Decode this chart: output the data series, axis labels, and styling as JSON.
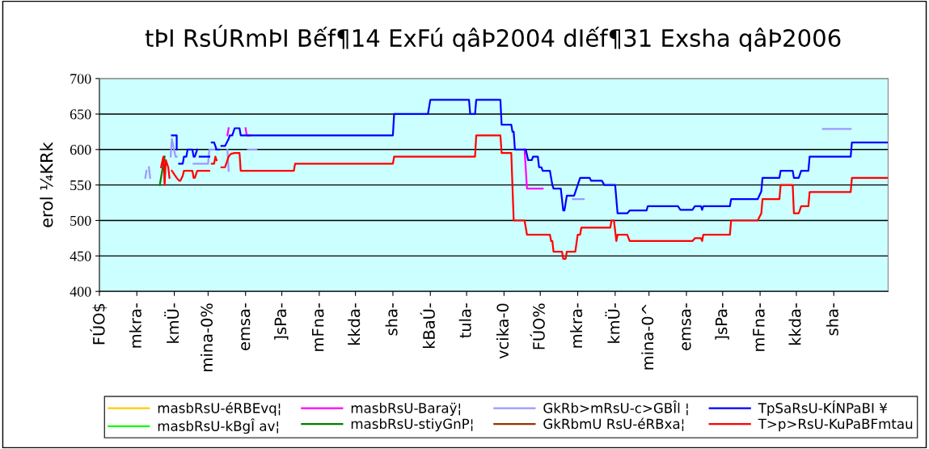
{
  "chart_data": {
    "type": "line",
    "title": "tÞI RsÚRmÞI Bếf¶14 ExFú qâÞ2004 dIếf¶31 Exsha qâÞ2006",
    "ylabel": "erol ¼KRk",
    "xlim": [
      "2004-12-01",
      "2006-09-15"
    ],
    "xticks": [
      {
        "value": "2004-12-01",
        "label": "FÚO$"
      },
      {
        "value": "2005-01-01",
        "label": "mkra-"
      },
      {
        "value": "2005-02-01",
        "label": "kmÜ-"
      },
      {
        "value": "2005-03-01",
        "label": "mina-0%"
      },
      {
        "value": "2005-04-01",
        "label": "emsa-"
      },
      {
        "value": "2005-05-01",
        "label": "]sPa-"
      },
      {
        "value": "2005-06-01",
        "label": "mFna-"
      },
      {
        "value": "2005-07-01",
        "label": "kkda-"
      },
      {
        "value": "2005-08-01",
        "label": "sha-"
      },
      {
        "value": "2005-09-01",
        "label": "kBaÚ-"
      },
      {
        "value": "2005-10-01",
        "label": "tula-"
      },
      {
        "value": "2005-11-01",
        "label": "vcika-0"
      },
      {
        "value": "2005-12-01",
        "label": "FÚO%"
      },
      {
        "value": "2006-01-01",
        "label": "mkra-"
      },
      {
        "value": "2006-02-01",
        "label": "kmÜ-"
      },
      {
        "value": "2006-03-01",
        "label": "mina-0^"
      },
      {
        "value": "2006-04-01",
        "label": "emsa-"
      },
      {
        "value": "2006-05-01",
        "label": "]sPa-"
      },
      {
        "value": "2006-06-01",
        "label": "mFna-"
      },
      {
        "value": "2006-07-01",
        "label": "kkda-"
      },
      {
        "value": "2006-08-01",
        "label": "sha-"
      }
    ],
    "ylim": [
      400,
      700
    ],
    "yticks": [
      400,
      450,
      500,
      550,
      600,
      650,
      700
    ],
    "grid": "y",
    "legend": "bottom",
    "series": [
      {
        "name": "masbRsU-éRBEvq¦",
        "color": "#ffcc00"
      },
      {
        "name": "masbRsU-kBgÎ av¦",
        "color": "#00ff00"
      },
      {
        "name": "masbRsU-Baraÿ¦",
        "color": "#ff00ff",
        "x": [
          "2005-03-17",
          "2005-03-18",
          "2005-03-25",
          "2005-04-01",
          "2005-04-02",
          "2005-04-05",
          "2005-11-16",
          "2005-11-18",
          "2005-11-20",
          "2005-12-03"
        ],
        "values": [
          620,
          630,
          null,
          630,
          620,
          620,
          null,
          600,
          545,
          545
        ]
      },
      {
        "name": "masbRsU-stiyGnP¦",
        "color": "#008000",
        "x": [
          "2005-01-20",
          "2005-01-24"
        ],
        "values": [
          550,
          590
        ]
      },
      {
        "name": "GkRb>mRsU-c>GBÎl ¦",
        "color": "#9999ff",
        "x": [
          "2005-01-08",
          "2005-01-09",
          "2005-01-10",
          "2005-01-11",
          "2005-01-12",
          "2005-01-19",
          "2005-01-29",
          "2005-01-30",
          "2005-02-02",
          "2005-02-03",
          "2005-02-10",
          "2005-02-17",
          "2005-03-01",
          "2005-03-02",
          "2005-03-06",
          "2005-03-13",
          "2005-03-17",
          "2005-03-18",
          "2005-03-25",
          "2005-04-03",
          "2005-04-10",
          "2005-08-01",
          "2005-12-28",
          "2006-01-06",
          "2006-04-01",
          "2006-07-23",
          "2006-08-15"
        ],
        "values": [
          560,
          570,
          null,
          575,
          560,
          null,
          590,
          615,
          590,
          590,
          null,
          580,
          580,
          600,
          600,
          null,
          600,
          570,
          null,
          600,
          600,
          null,
          530,
          530,
          null,
          629,
          629
        ]
      },
      {
        "name": "GkRbmU RsU-éRBxa¦",
        "color": "#993300"
      },
      {
        "name": "TpSaRsU-KÍNPaBI ¥",
        "color": "#0000ff",
        "x": [
          "2005-01-30",
          "2005-02-03",
          "2005-02-03",
          "2005-02-04",
          "2005-02-05",
          "2005-02-08",
          "2005-02-09",
          "2005-02-11",
          "2005-02-12",
          "2005-02-16",
          "2005-02-17",
          "2005-02-18",
          "2005-02-20",
          "2005-02-21",
          "2005-02-22",
          "2005-03-02",
          "2005-03-03",
          "2005-03-04",
          "2005-03-06",
          "2005-03-08",
          "2005-03-10",
          "2005-03-11",
          "2005-03-12",
          "2005-03-15",
          "2005-03-18",
          "2005-03-19",
          "2005-03-21",
          "2005-03-23",
          "2005-03-27",
          "2005-03-28",
          "2005-08-01",
          "2005-08-02",
          "2005-08-30",
          "2005-09-01",
          "2005-10-03",
          "2005-10-04",
          "2005-10-08",
          "2005-10-09",
          "2005-10-29",
          "2005-10-30",
          "2005-11-07",
          "2005-11-08",
          "2005-11-09",
          "2005-11-10",
          "2005-11-19",
          "2005-11-21",
          "2005-11-24",
          "2005-11-25",
          "2005-11-29",
          "2005-11-30",
          "2005-12-02",
          "2005-12-03",
          "2005-12-09",
          "2005-12-11",
          "2005-12-12",
          "2005-12-18",
          "2005-12-20",
          "2005-12-21",
          "2005-12-23",
          "2005-12-29",
          "2006-01-03",
          "2006-01-04",
          "2006-01-11",
          "2006-01-12",
          "2006-01-21",
          "2006-01-23",
          "2006-02-01",
          "2006-02-03",
          "2006-02-11",
          "2006-02-13",
          "2006-02-27",
          "2006-02-28",
          "2006-03-25",
          "2006-03-27",
          "2006-04-06",
          "2006-04-08",
          "2006-04-13",
          "2006-04-14",
          "2006-04-15",
          "2006-05-07",
          "2006-05-08",
          "2006-05-30",
          "2006-06-02",
          "2006-06-03",
          "2006-06-17",
          "2006-06-18",
          "2006-06-28",
          "2006-06-29",
          "2006-07-03",
          "2006-07-05",
          "2006-07-11",
          "2006-07-12",
          "2006-08-15",
          "2006-08-16",
          "2006-09-15"
        ],
        "values": [
          620,
          620,
          600,
          null,
          580,
          580,
          590,
          590,
          600,
          600,
          590,
          590,
          600,
          null,
          590,
          590,
          null,
          610,
          610,
          600,
          600,
          null,
          605,
          605,
          615,
          620,
          620,
          630,
          630,
          620,
          620,
          650,
          650,
          670,
          670,
          650,
          650,
          670,
          670,
          635,
          635,
          625,
          625,
          600,
          600,
          585,
          585,
          590,
          590,
          575,
          575,
          570,
          570,
          550,
          545,
          545,
          514,
          514,
          535,
          535,
          560,
          560,
          560,
          556,
          556,
          550,
          550,
          510,
          510,
          514,
          514,
          520,
          520,
          515,
          515,
          520,
          520,
          515,
          520,
          520,
          530,
          530,
          541,
          560,
          560,
          570,
          570,
          560,
          560,
          570,
          570,
          590,
          590,
          610,
          610
        ]
      },
      {
        "name": "T>p>RsU-KuPaBFmtau",
        "color": "#ff0000",
        "x": [
          "2005-01-21",
          "2005-01-23",
          "2005-01-24",
          "2005-01-25",
          "2005-01-27",
          "2005-01-28",
          "2005-01-29",
          "2005-01-30",
          "2005-02-03",
          "2005-02-05",
          "2005-02-06",
          "2005-02-08",
          "2005-02-09",
          "2005-02-12",
          "2005-02-16",
          "2005-02-17",
          "2005-02-18",
          "2005-02-20",
          "2005-03-02",
          "2005-03-03",
          "2005-03-04",
          "2005-03-06",
          "2005-03-07",
          "2005-03-08",
          "2005-03-10",
          "2005-03-12",
          "2005-03-15",
          "2005-03-18",
          "2005-03-20",
          "2005-03-23",
          "2005-03-27",
          "2005-03-28",
          "2005-05-11",
          "2005-05-12",
          "2005-08-01",
          "2005-08-02",
          "2005-10-08",
          "2005-10-09",
          "2005-10-29",
          "2005-10-30",
          "2005-11-07",
          "2005-11-09",
          "2005-11-18",
          "2005-11-20",
          "2005-12-09",
          "2005-12-10",
          "2005-12-11",
          "2005-12-12",
          "2005-12-19",
          "2005-12-20",
          "2005-12-22",
          "2005-12-23",
          "2005-12-30",
          "2006-01-01",
          "2006-01-03",
          "2006-01-04",
          "2006-01-28",
          "2006-01-29",
          "2006-01-31",
          "2006-02-02",
          "2006-02-03",
          "2006-02-11",
          "2006-02-13",
          "2006-04-06",
          "2006-04-08",
          "2006-04-13",
          "2006-04-14",
          "2006-04-15",
          "2006-05-07",
          "2006-05-08",
          "2006-05-30",
          "2006-06-02",
          "2006-06-03",
          "2006-06-17",
          "2006-06-18",
          "2006-06-28",
          "2006-06-29",
          "2006-07-03",
          "2006-07-05",
          "2006-07-11",
          "2006-07-12",
          "2006-08-15",
          "2006-08-16",
          "2006-09-15"
        ],
        "values": [
          575,
          590,
          550,
          585,
          575,
          560,
          null,
          570,
          560,
          556,
          556,
          563,
          570,
          570,
          570,
          560,
          560,
          570,
          570,
          null,
          580,
          580,
          590,
          585,
          null,
          575,
          575,
          590,
          594,
          595,
          595,
          570,
          570,
          580,
          580,
          590,
          590,
          620,
          620,
          595,
          595,
          500,
          500,
          480,
          480,
          471,
          471,
          456,
          456,
          446,
          446,
          456,
          456,
          480,
          480,
          490,
          490,
          500,
          500,
          471,
          480,
          480,
          471,
          471,
          475,
          475,
          471,
          480,
          480,
          500,
          500,
          510,
          530,
          530,
          550,
          550,
          510,
          510,
          520,
          520,
          540,
          540,
          560,
          560
        ]
      }
    ]
  }
}
